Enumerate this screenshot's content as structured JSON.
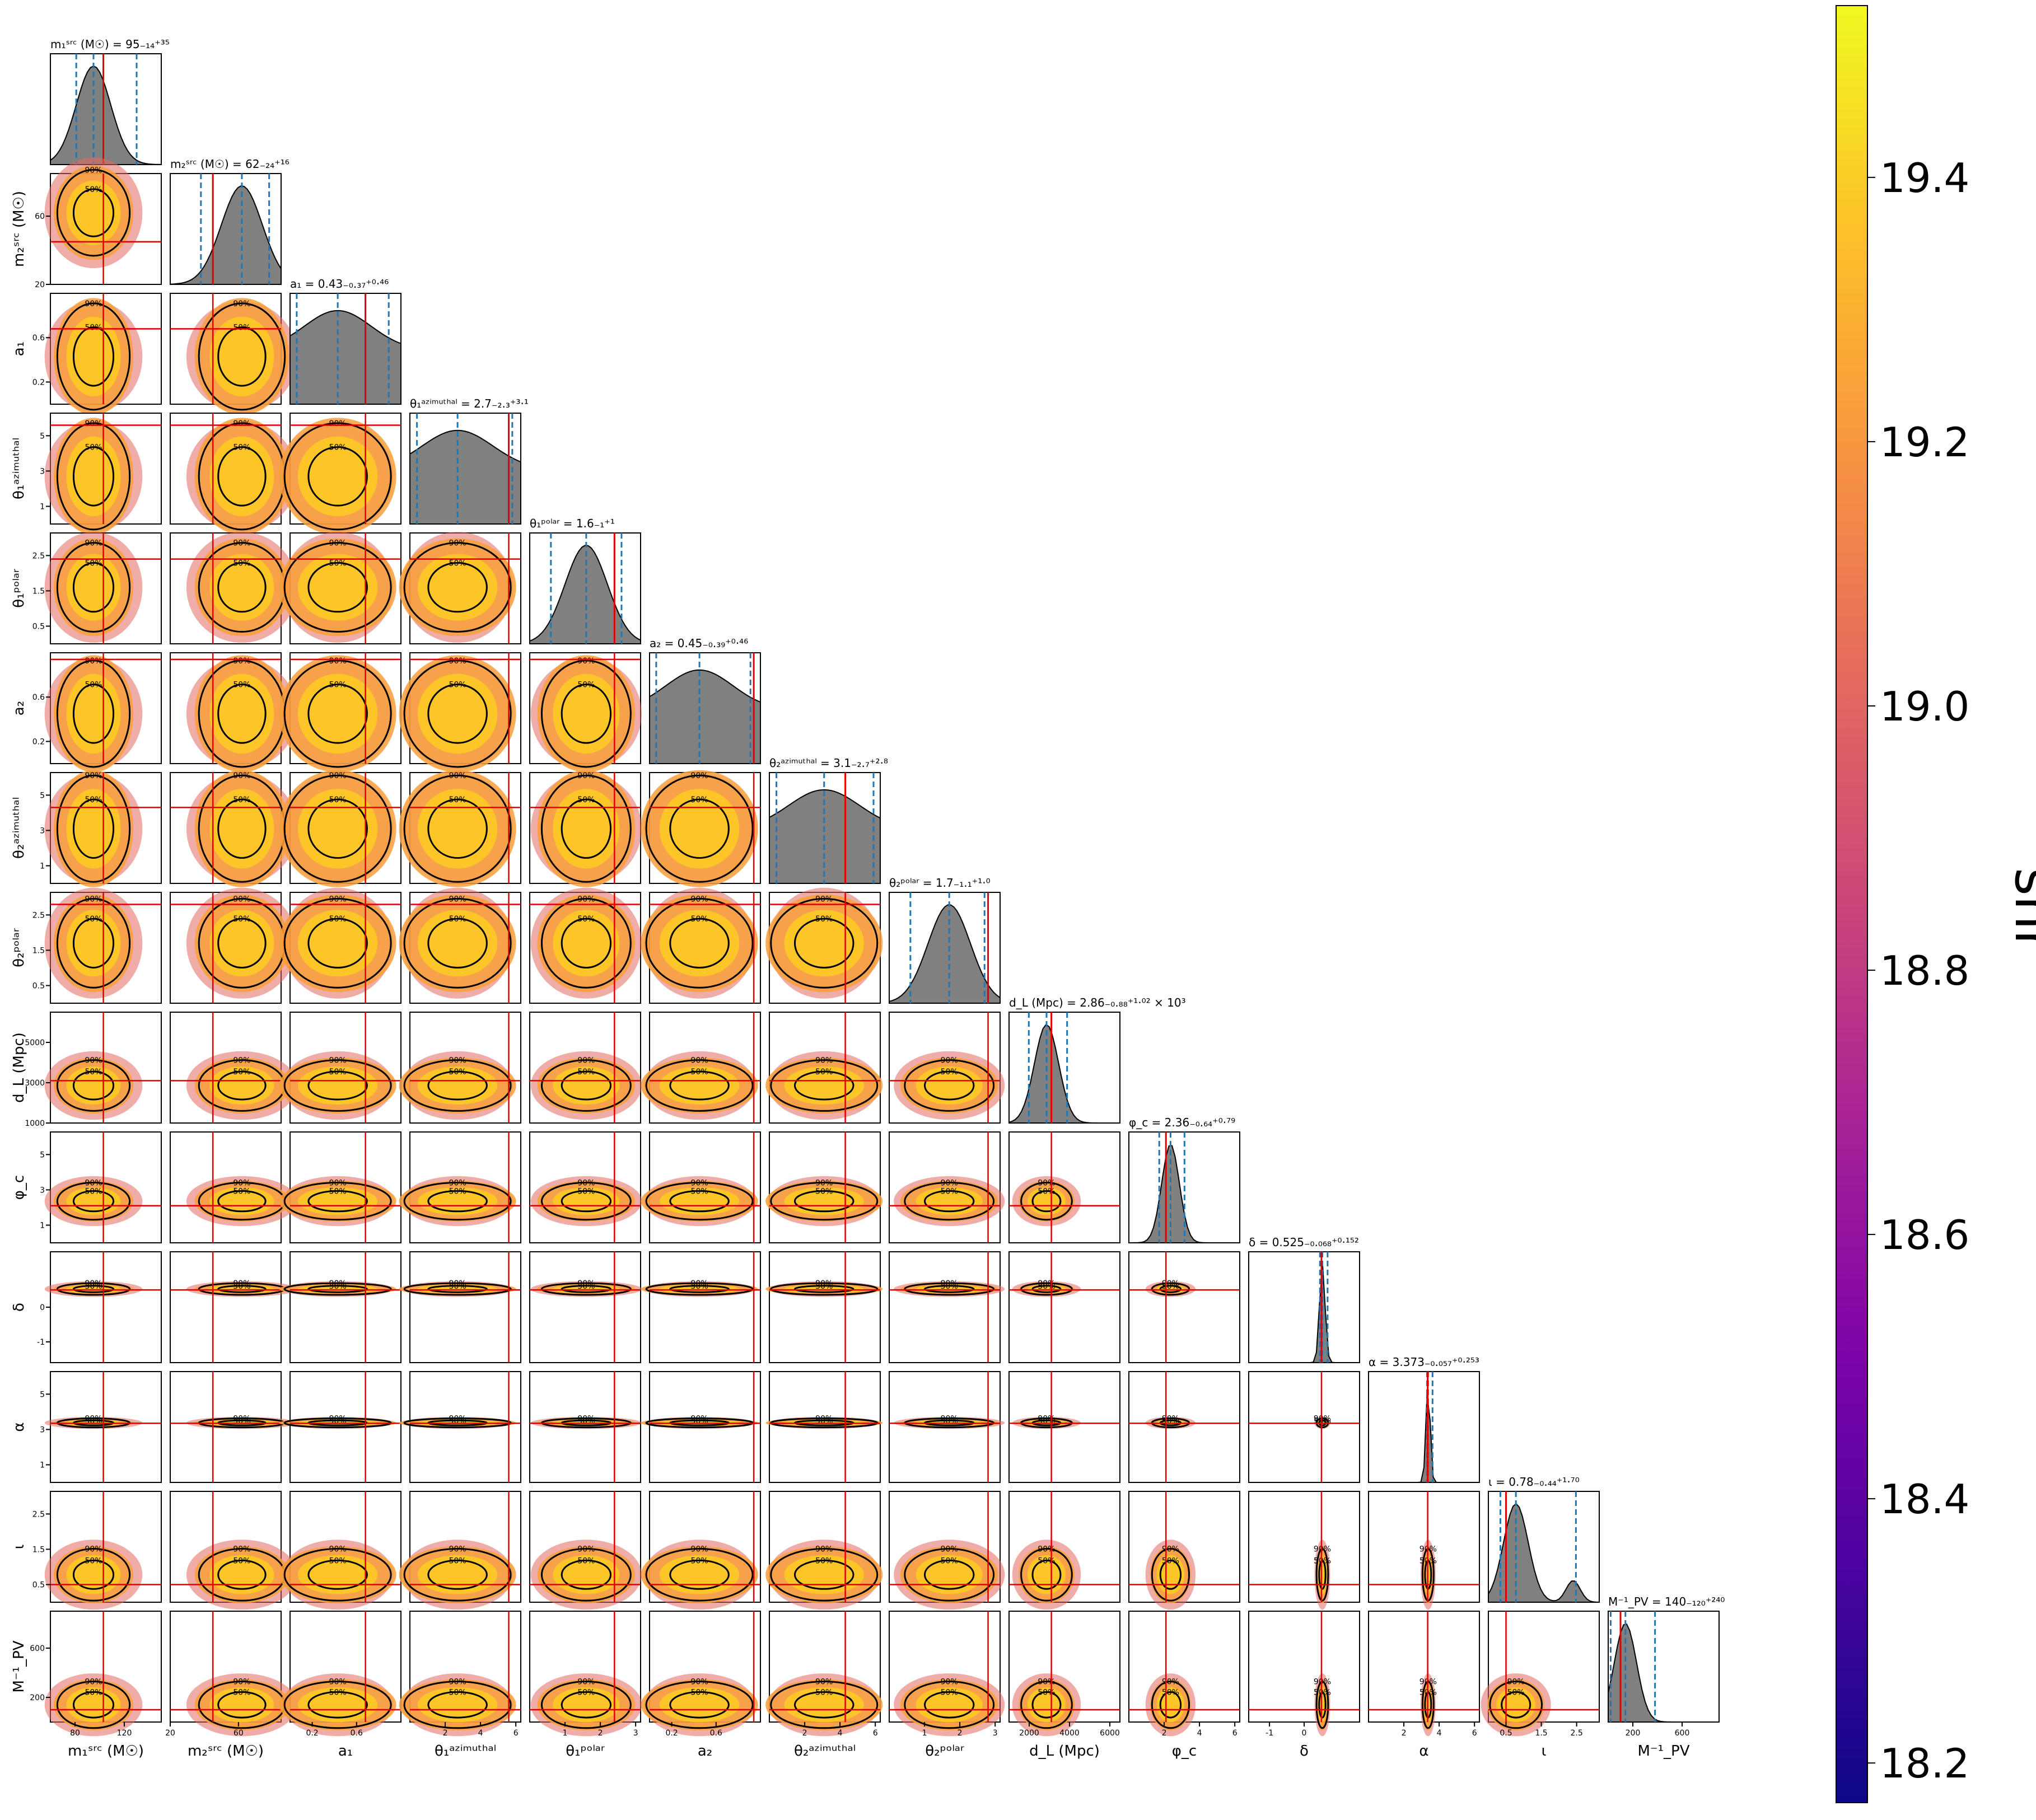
{
  "chart_data": {
    "type": "corner",
    "params": [
      {
        "key": "m1",
        "axis_label": "m₁ˢʳᶜ (M☉)",
        "title": "m₁ˢʳᶜ (M☉) = 95₋₁₄⁺³⁵",
        "range": [
          60,
          150
        ],
        "ticks": [
          80,
          120
        ],
        "median": 95,
        "lo": 81,
        "hi": 130,
        "truth": 103,
        "sigma": 14
      },
      {
        "key": "m2",
        "axis_label": "m₂ˢʳᶜ (M☉)",
        "title": "m₂ˢʳᶜ (M☉) = 62₋₂₄⁺¹⁶",
        "range": [
          20,
          85
        ],
        "ticks": [
          20,
          60
        ],
        "median": 62,
        "lo": 38,
        "hi": 78,
        "truth": 45,
        "sigma": 12
      },
      {
        "key": "a1",
        "axis_label": "a₁",
        "title": "a₁ = 0.43₋₀.₃₇⁺⁰·⁴⁶",
        "range": [
          0,
          1
        ],
        "ticks": [
          0.2,
          0.6
        ],
        "median": 0.43,
        "lo": 0.06,
        "hi": 0.89,
        "truth": 0.68,
        "sigma": 0.3
      },
      {
        "key": "th1a",
        "axis_label": "θ₁ᵃᶻⁱᵐᵘᵗʰᵃˡ",
        "title": "θ₁ᵃᶻⁱᵐᵘᵗʰᵃˡ = 2.7₋₂.₃⁺³·¹",
        "range": [
          0,
          6.28
        ],
        "ticks": [
          2,
          4,
          6
        ],
        "median": 2.7,
        "lo": 0.4,
        "hi": 5.8,
        "truth": 5.6,
        "sigma": 2.0
      },
      {
        "key": "th1p",
        "axis_label": "θ₁ᵖᵒˡᵃʳ",
        "title": "θ₁ᵖᵒˡᵃʳ = 1.6₋₁⁺¹",
        "range": [
          0,
          3.14
        ],
        "ticks": [
          1,
          2,
          3
        ],
        "median": 1.6,
        "lo": 0.6,
        "hi": 2.6,
        "truth": 2.4,
        "sigma": 0.6
      },
      {
        "key": "a2",
        "axis_label": "a₂",
        "title": "a₂ = 0.45₋₀.₃₉⁺⁰·⁴⁶",
        "range": [
          0,
          1
        ],
        "ticks": [
          0.2,
          0.6
        ],
        "median": 0.45,
        "lo": 0.06,
        "hi": 0.91,
        "truth": 0.94,
        "sigma": 0.3
      },
      {
        "key": "th2a",
        "axis_label": "θ₂ᵃᶻⁱᵐᵘᵗʰᵃˡ",
        "title": "θ₂ᵃᶻⁱᵐᵘᵗʰᵃˡ = 3.1₋₂.₇⁺²·⁸",
        "range": [
          0,
          6.28
        ],
        "ticks": [
          2,
          4,
          6
        ],
        "median": 3.1,
        "lo": 0.4,
        "hi": 5.9,
        "truth": 4.3,
        "sigma": 2.0
      },
      {
        "key": "th2p",
        "axis_label": "θ₂ᵖᵒˡᵃʳ",
        "title": "θ₂ᵖᵒˡᵃʳ = 1.7₋₁.₁⁺¹·⁰",
        "range": [
          0,
          3.14
        ],
        "ticks": [
          1,
          2,
          3
        ],
        "median": 1.7,
        "lo": 0.6,
        "hi": 2.7,
        "truth": 2.8,
        "sigma": 0.6
      },
      {
        "key": "dl",
        "axis_label": "d_L (Mpc)",
        "title": "d_L (Mpc) = 2.86₋₀.₈₈⁺¹·⁰² × 10³",
        "range": [
          1000,
          6500
        ],
        "ticks": [
          2000,
          4000,
          6000
        ],
        "median": 2860,
        "lo": 1980,
        "hi": 3880,
        "truth": 3100,
        "sigma": 600
      },
      {
        "key": "phic",
        "axis_label": "φ_c",
        "title": "φ_c = 2.36₋₀.₆₄⁺⁰·⁷⁹",
        "range": [
          0,
          6.28
        ],
        "ticks": [
          2,
          4,
          6
        ],
        "median": 2.36,
        "lo": 1.72,
        "hi": 3.15,
        "truth": 2.1,
        "sigma": 0.5
      },
      {
        "key": "delta",
        "axis_label": "δ",
        "title": "δ = 0.525₋₀.₀₆₈⁺⁰·¹⁵²",
        "range": [
          -1.6,
          1.6
        ],
        "ticks": [
          -1,
          0
        ],
        "median": 0.525,
        "lo": 0.457,
        "hi": 0.677,
        "truth": 0.5,
        "sigma": 0.08
      },
      {
        "key": "alpha",
        "axis_label": "α",
        "title": "α = 3.373₋₀.₀₅₇⁺⁰·²⁵³",
        "range": [
          0,
          6.28
        ],
        "ticks": [
          2,
          4,
          6
        ],
        "median": 3.373,
        "lo": 3.316,
        "hi": 3.626,
        "truth": 3.35,
        "sigma": 0.12
      },
      {
        "key": "iota",
        "axis_label": "ι",
        "title": "ι = 0.78₋₀.₄₄⁺¹·⁷⁰",
        "range": [
          0,
          3.14
        ],
        "ticks": [
          0.5,
          1.5,
          2.5
        ],
        "median": 0.78,
        "lo": 0.34,
        "hi": 2.48,
        "truth": 0.5,
        "sigma": 0.35
      },
      {
        "key": "mpv",
        "axis_label": "M⁻¹_PV",
        "title": "M⁻¹_PV = 140₋₁₂₀⁺²⁴⁰",
        "range": [
          0,
          900
        ],
        "ticks": [
          200,
          600
        ],
        "median": 140,
        "lo": 20,
        "hi": 380,
        "truth": 100,
        "sigma": 90
      }
    ],
    "tick_labels_y": {
      "m2": [
        "20",
        "60"
      ],
      "a1": [
        "0.2",
        "0.6"
      ],
      "th1a": [
        "1",
        "3",
        "5"
      ],
      "th1p": [
        "0.5",
        "1.5",
        "2.5"
      ],
      "a2": [
        "0.2",
        "0.6"
      ],
      "th2a": [
        "1",
        "3",
        "5"
      ],
      "th2p": [
        "0.5",
        "1.5",
        "2.5"
      ],
      "dl": [
        "1000",
        "3000",
        "5000"
      ],
      "phic": [
        "1",
        "3",
        "5"
      ],
      "delta": [
        "-1",
        "0"
      ],
      "alpha": [
        "1",
        "3",
        "5"
      ],
      "iota": [
        "0.5",
        "1.5",
        "2.5"
      ],
      "mpv": [
        "200",
        "600"
      ]
    },
    "contour_levels": [
      "50%",
      "90%"
    ],
    "colorbar": {
      "label": "snr",
      "min": 18.17,
      "max": 19.53,
      "ticks": [
        "18.2",
        "18.4",
        "18.6",
        "18.8",
        "19.0",
        "19.2",
        "19.4"
      ],
      "tick_values": [
        18.2,
        18.4,
        18.6,
        18.8,
        19.0,
        19.2,
        19.4
      ],
      "colormap": "plasma"
    },
    "colors": {
      "histogram_fill": "#808080",
      "quantile_line": "#1f77b4",
      "truth_line": "#e00000",
      "contour": "#000000"
    }
  }
}
